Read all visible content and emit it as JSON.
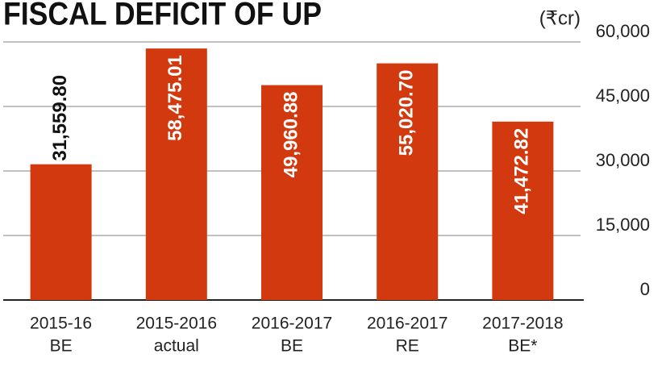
{
  "chart_data": {
    "type": "bar",
    "title": "FISCAL DEFICIT OF UP",
    "unit": "(₹cr)",
    "categories": [
      [
        "2015-16",
        "BE"
      ],
      [
        "2015-2016",
        "actual"
      ],
      [
        "2016-2017",
        "BE"
      ],
      [
        "2016-2017",
        "RE"
      ],
      [
        "2017-2018",
        "BE*"
      ]
    ],
    "values": [
      31559.8,
      58475.01,
      49960.88,
      55020.7,
      41472.82
    ],
    "value_labels": [
      "31,559.80",
      "58,475.01",
      "49,960.88",
      "55,020.70",
      "41,472.82"
    ],
    "color": "#d2390f",
    "ylim": [
      0,
      60000
    ],
    "yticks": [
      0,
      {
        "value": 15000,
        "label": "15,000"
      },
      {
        "value": 30000,
        "label": "30,000"
      },
      {
        "value": 45000,
        "label": "45,000"
      },
      {
        "value": 60000,
        "label": "60,000"
      }
    ],
    "grid": true
  }
}
